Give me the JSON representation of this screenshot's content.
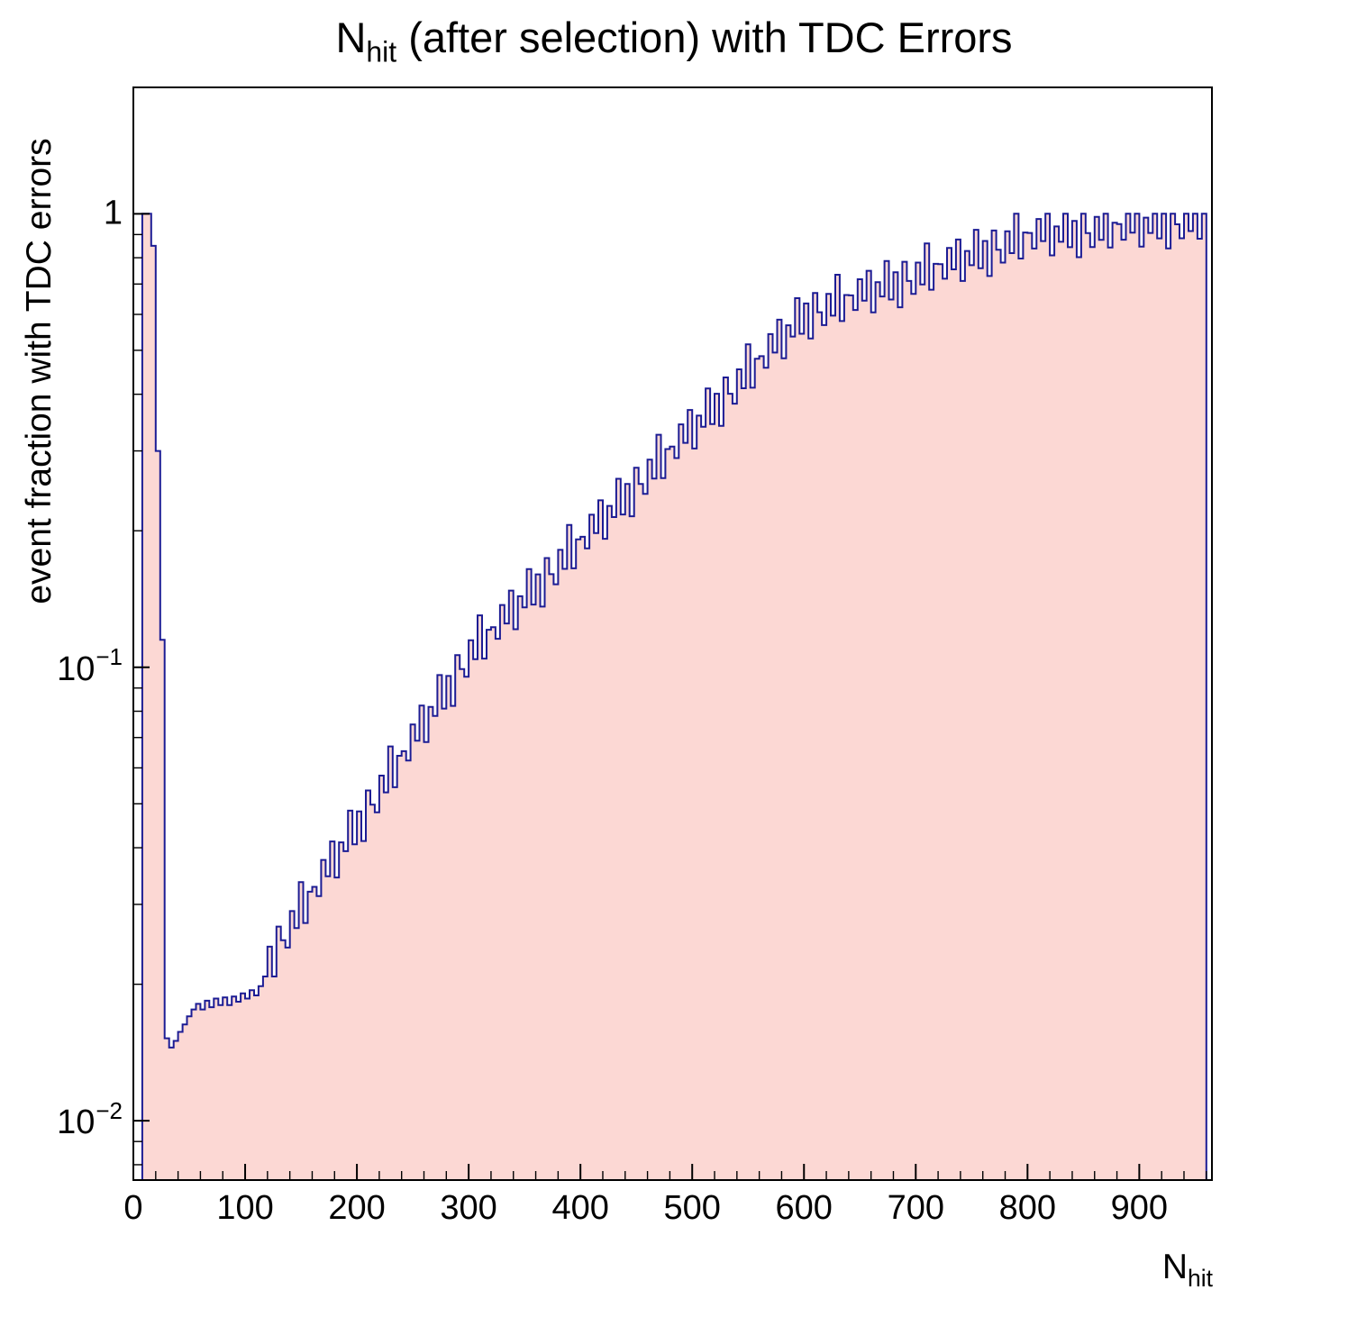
{
  "title": {
    "pre": "N",
    "sub": "hit",
    "post": " (after selection) with TDC Errors"
  },
  "axes": {
    "y_label": "event fraction with TDC errors",
    "x_label_pre": "N",
    "x_label_sub": "hit",
    "x_ticks": [
      0,
      100,
      200,
      300,
      400,
      500,
      600,
      700,
      800,
      900
    ],
    "x_minor_step": 20,
    "y_ticks": [
      {
        "v": 1,
        "base": "1",
        "exp": ""
      },
      {
        "v": 0.1,
        "base": "10",
        "exp": "−1"
      },
      {
        "v": 0.01,
        "base": "10",
        "exp": "−2"
      }
    ]
  },
  "colors": {
    "fill": "#fcd8d4",
    "line": "#1c1c94",
    "frame": "#000000",
    "background": "#ffffff"
  },
  "chart_data": {
    "type": "bar",
    "title": "N_hit (after selection) with TDC Errors",
    "xlabel": "N_hit",
    "ylabel": "event fraction with TDC errors",
    "yscale": "log",
    "xlim": [
      0,
      965
    ],
    "ylim": [
      0.0074,
      1.9
    ],
    "grid": false,
    "legend": false,
    "bin_width": 4,
    "x_start": 0,
    "values": [
      0,
      0,
      1.0,
      1.0,
      0.85,
      0.3,
      0.115,
      0.0152,
      0.0145,
      0.015,
      0.0157,
      0.0163,
      0.017,
      0.0176,
      0.0181,
      0.0176,
      0.0184,
      0.0178,
      0.0186,
      0.018,
      0.0187,
      0.018,
      0.0188,
      0.0183,
      0.0191,
      0.0186,
      0.0194,
      0.0189,
      0.0198,
      0.0208,
      0.0242,
      0.0208,
      0.0268,
      0.025,
      0.0241,
      0.029,
      0.0266,
      0.0336,
      0.0273,
      0.032,
      0.0328,
      0.0313,
      0.0376,
      0.0346,
      0.0413,
      0.0344,
      0.0411,
      0.0393,
      0.0483,
      0.0407,
      0.0481,
      0.0414,
      0.0535,
      0.0498,
      0.0479,
      0.0577,
      0.053,
      0.0669,
      0.0544,
      0.0638,
      0.0653,
      0.0623,
      0.0748,
      0.0689,
      0.0823,
      0.0684,
      0.0818,
      0.0781,
      0.0961,
      0.0811,
      0.0957,
      0.0822,
      0.1064,
      0.0991,
      0.0953,
      0.1147,
      0.1042,
      0.1302,
      0.1045,
      0.121,
      0.1226,
      0.1156,
      0.1372,
      0.1249,
      0.1476,
      0.1213,
      0.1434,
      0.1355,
      0.1646,
      0.1375,
      0.1603,
      0.1361,
      0.1741,
      0.1604,
      0.1524,
      0.1815,
      0.1648,
      0.2059,
      0.1653,
      0.1915,
      0.194,
      0.1829,
      0.217,
      0.1976,
      0.2334,
      0.192,
      0.2269,
      0.2144,
      0.2604,
      0.2173,
      0.2536,
      0.2153,
      0.2754,
      0.2536,
      0.2411,
      0.287,
      0.2607,
      0.3257,
      0.2614,
      0.3028,
      0.3068,
      0.2893,
      0.3432,
      0.3125,
      0.3693,
      0.3036,
      0.3589,
      0.339,
      0.4119,
      0.3438,
      0.401,
      0.3407,
      0.4356,
      0.4011,
      0.3814,
      0.4539,
      0.4124,
      0.5152,
      0.4135,
      0.479,
      0.4853,
      0.4576,
      0.5429,
      0.4943,
      0.5841,
      0.4802,
      0.5677,
      0.5363,
      0.6515,
      0.5439,
      0.6342,
      0.5307,
      0.6687,
      0.6066,
      0.5682,
      0.6661,
      0.5961,
      0.7337,
      0.5801,
      0.6619,
      0.6607,
      0.6137,
      0.7173,
      0.6434,
      0.7488,
      0.6065,
      0.7065,
      0.6573,
      0.7868,
      0.647,
      0.7433,
      0.622,
      0.7836,
      0.7109,
      0.6659,
      0.7807,
      0.6986,
      0.8599,
      0.68,
      0.7757,
      0.7743,
      0.7193,
      0.8407,
      0.7541,
      0.8776,
      0.7109,
      0.828,
      0.7704,
      0.9221,
      0.7582,
      0.8711,
      0.729,
      0.9185,
      0.8332,
      0.7804,
      0.915,
      0.8188,
      1.0,
      0.7969,
      0.9092,
      0.9075,
      0.8382,
      0.9741,
      0.8708,
      1.0,
      0.8097,
      0.9378,
      0.8676,
      1.0,
      0.8442,
      0.9644,
      0.8024,
      1.0,
      0.9067,
      0.8445,
      0.9844,
      0.8759,
      1.0,
      0.8428,
      0.956,
      0.9489,
      0.8765,
      1.0,
      0.9085,
      1.0,
      0.8467,
      0.9806,
      0.9072,
      1.0,
      0.8828,
      1.0,
      0.8391,
      1.0,
      0.9481,
      0.8831,
      1.0,
      0.916,
      1.0,
      0.8813,
      1.0
    ]
  }
}
